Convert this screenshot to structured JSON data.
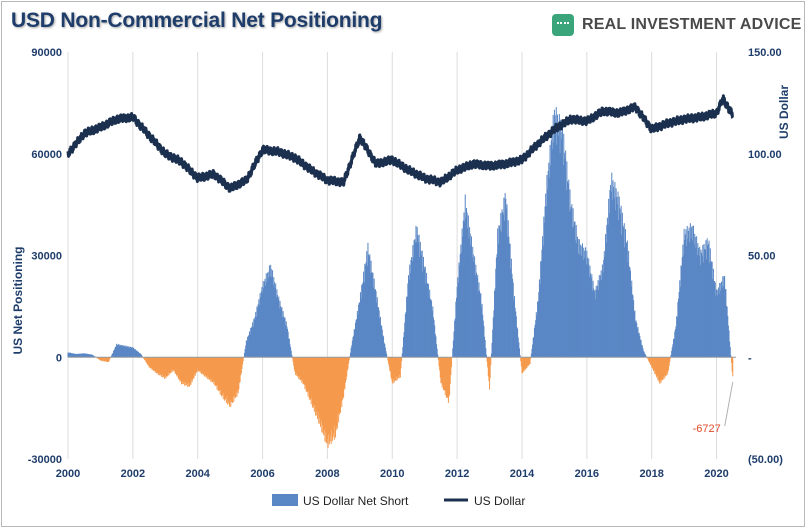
{
  "header": {
    "title": "USD Non-Commercial Net Positioning",
    "brand": "REAL INVESTMENT ADVICE"
  },
  "chart_data": {
    "type": "bar+line",
    "left_axis": {
      "label": "US Net Positioning",
      "range": [
        -30000,
        90000
      ],
      "ticks": [
        -30000,
        0,
        30000,
        60000,
        90000
      ],
      "tick_labels": [
        "-30000",
        "0",
        "30000",
        "60000",
        "90000"
      ]
    },
    "right_axis": {
      "label": "US Dollar",
      "range": [
        -50,
        150
      ],
      "ticks": [
        -50,
        0,
        50,
        100,
        150
      ],
      "tick_labels": [
        "(50.00)",
        "-",
        "50.00",
        "100.00",
        "150.00"
      ]
    },
    "x_axis": {
      "range": [
        2000,
        2020.6
      ],
      "ticks": [
        2000,
        2002,
        2004,
        2006,
        2008,
        2010,
        2012,
        2014,
        2016,
        2018,
        2020
      ],
      "tick_labels": [
        "2000",
        "2002",
        "2004",
        "2006",
        "2008",
        "2010",
        "2012",
        "2014",
        "2016",
        "2018",
        "2020"
      ]
    },
    "grid": "vertical",
    "legend": {
      "placement": "bottom",
      "entries": [
        {
          "name": "US Dollar Net Short",
          "kind": "bar",
          "color": "#5a87c5"
        },
        {
          "name": "US Dollar",
          "kind": "line",
          "color": "#1b2f4e"
        }
      ]
    },
    "colors": {
      "positive": "#5a87c5",
      "negative": "#f59a4d",
      "line": "#1b2f4e",
      "grid": "#dcdcdc",
      "callout": "#e04a2a"
    },
    "annotation": {
      "text": "-6727",
      "x": 2020.5,
      "value": -6727
    },
    "bars": {
      "name": "US Dollar Net Short",
      "x": [
        2000.0,
        2000.25,
        2000.5,
        2000.75,
        2001.0,
        2001.25,
        2001.5,
        2001.75,
        2002.0,
        2002.25,
        2002.5,
        2002.75,
        2003.0,
        2003.25,
        2003.5,
        2003.75,
        2004.0,
        2004.25,
        2004.5,
        2004.75,
        2005.0,
        2005.25,
        2005.5,
        2005.75,
        2006.0,
        2006.25,
        2006.5,
        2006.75,
        2007.0,
        2007.25,
        2007.5,
        2007.75,
        2008.0,
        2008.25,
        2008.5,
        2008.75,
        2009.0,
        2009.25,
        2009.5,
        2009.75,
        2010.0,
        2010.25,
        2010.5,
        2010.75,
        2011.0,
        2011.25,
        2011.5,
        2011.75,
        2012.0,
        2012.25,
        2012.5,
        2012.75,
        2013.0,
        2013.25,
        2013.5,
        2013.75,
        2014.0,
        2014.25,
        2014.5,
        2014.75,
        2015.0,
        2015.25,
        2015.5,
        2015.75,
        2016.0,
        2016.25,
        2016.5,
        2016.75,
        2017.0,
        2017.25,
        2017.5,
        2017.75,
        2018.0,
        2018.25,
        2018.5,
        2018.75,
        2019.0,
        2019.25,
        2019.5,
        2019.75,
        2020.0,
        2020.25,
        2020.5
      ],
      "values": [
        1500,
        1000,
        1200,
        800,
        -1000,
        -1500,
        4000,
        3500,
        3000,
        1000,
        -3000,
        -5000,
        -6500,
        -4000,
        -8000,
        -9000,
        -4000,
        -6000,
        -8000,
        -12000,
        -15000,
        -11000,
        5000,
        12000,
        22000,
        28000,
        18000,
        10000,
        -5000,
        -8000,
        -14000,
        -20000,
        -27000,
        -24000,
        -12000,
        4000,
        18000,
        34000,
        20000,
        5000,
        -8000,
        -6000,
        25000,
        40000,
        28000,
        15000,
        -8000,
        -14000,
        22000,
        48000,
        32000,
        18000,
        -10000,
        38000,
        50000,
        20000,
        -5000,
        -2000,
        18000,
        52000,
        75000,
        70000,
        48000,
        35000,
        32000,
        20000,
        28000,
        55000,
        48000,
        35000,
        12000,
        2000,
        -3000,
        -8000,
        -5000,
        10000,
        38000,
        40000,
        32000,
        36000,
        20000,
        25000,
        -6727
      ]
    },
    "line": {
      "name": "US Dollar",
      "x": [
        2000.0,
        2000.5,
        2001.0,
        2001.5,
        2002.0,
        2002.5,
        2003.0,
        2003.5,
        2004.0,
        2004.5,
        2005.0,
        2005.5,
        2006.0,
        2006.5,
        2007.0,
        2007.5,
        2008.0,
        2008.5,
        2009.0,
        2009.5,
        2010.0,
        2010.5,
        2011.0,
        2011.5,
        2012.0,
        2012.5,
        2013.0,
        2013.5,
        2014.0,
        2014.5,
        2015.0,
        2015.5,
        2016.0,
        2016.5,
        2017.0,
        2017.5,
        2018.0,
        2018.5,
        2019.0,
        2019.5,
        2020.0,
        2020.2,
        2020.5
      ],
      "values": [
        100,
        110,
        113,
        117,
        118,
        109,
        100,
        96,
        88,
        90,
        83,
        87,
        102,
        101,
        98,
        92,
        87,
        86,
        108,
        95,
        97,
        92,
        88,
        86,
        92,
        95,
        94,
        95,
        97,
        105,
        112,
        117,
        116,
        121,
        120,
        123,
        112,
        115,
        117,
        118,
        120,
        127,
        119
      ]
    }
  }
}
